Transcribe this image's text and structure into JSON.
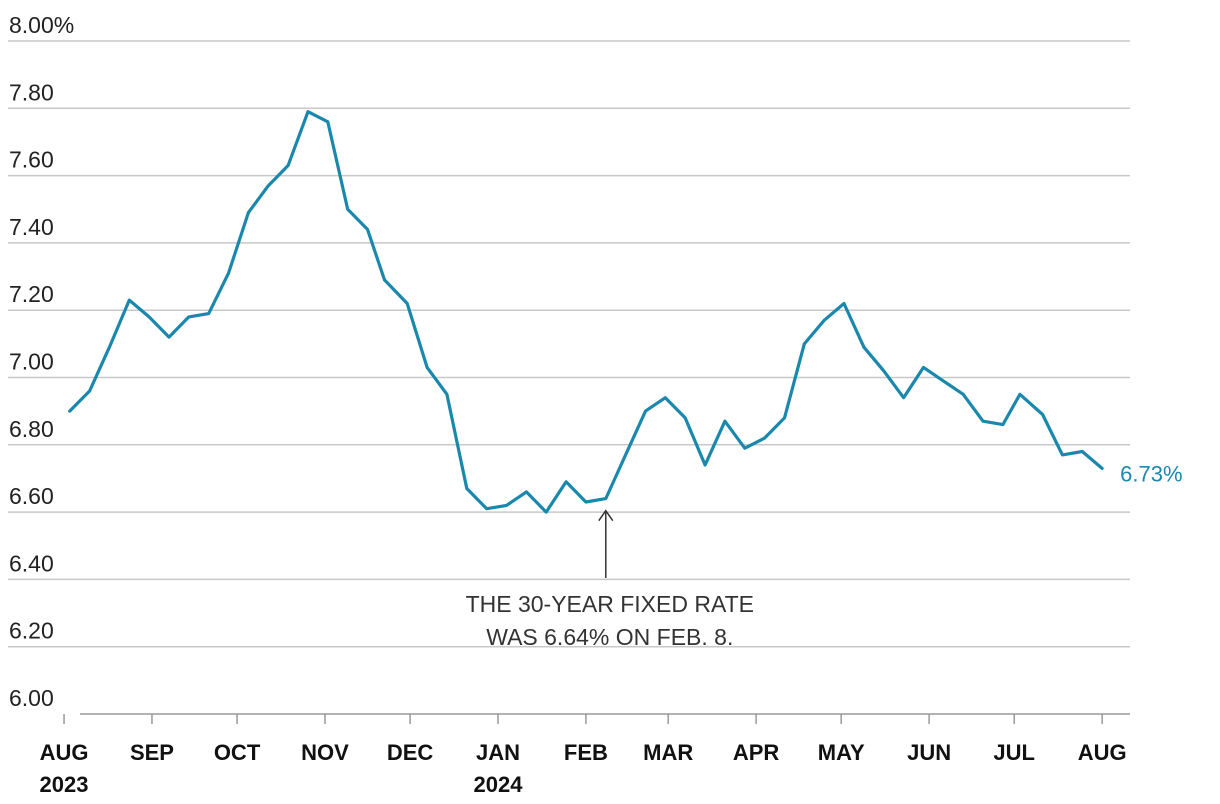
{
  "chart_data": {
    "type": "line",
    "title": "",
    "xlabel": "",
    "ylabel": "",
    "ylim": [
      6.0,
      8.0
    ],
    "y_ticks": [
      {
        "value": 8.0,
        "label": "8.00%"
      },
      {
        "value": 7.8,
        "label": "7.80"
      },
      {
        "value": 7.6,
        "label": "7.60"
      },
      {
        "value": 7.4,
        "label": "7.40"
      },
      {
        "value": 7.2,
        "label": "7.20"
      },
      {
        "value": 7.0,
        "label": "7.00"
      },
      {
        "value": 6.8,
        "label": "6.80"
      },
      {
        "value": 6.6,
        "label": "6.60"
      },
      {
        "value": 6.4,
        "label": "6.40"
      },
      {
        "value": 6.2,
        "label": "6.20"
      },
      {
        "value": 6.0,
        "label": "6.00"
      }
    ],
    "x_ticks": [
      {
        "date": "2023-08-01",
        "label": "AUG",
        "year": "2023"
      },
      {
        "date": "2023-09-01",
        "label": "SEP",
        "year": ""
      },
      {
        "date": "2023-10-01",
        "label": "OCT",
        "year": ""
      },
      {
        "date": "2023-11-01",
        "label": "NOV",
        "year": ""
      },
      {
        "date": "2023-12-01",
        "label": "DEC",
        "year": ""
      },
      {
        "date": "2024-01-01",
        "label": "JAN",
        "year": "2024"
      },
      {
        "date": "2024-02-01",
        "label": "FEB",
        "year": ""
      },
      {
        "date": "2024-03-01",
        "label": "MAR",
        "year": ""
      },
      {
        "date": "2024-04-01",
        "label": "APR",
        "year": ""
      },
      {
        "date": "2024-05-01",
        "label": "MAY",
        "year": ""
      },
      {
        "date": "2024-06-01",
        "label": "JUN",
        "year": ""
      },
      {
        "date": "2024-07-01",
        "label": "JUL",
        "year": ""
      },
      {
        "date": "2024-08-01",
        "label": "AUG",
        "year": ""
      }
    ],
    "x_range": [
      "2023-07-20",
      "2024-08-08"
    ],
    "series": [
      {
        "color": "#1a88ad",
        "x": [
          "2023-08-03",
          "2023-08-10",
          "2023-08-17",
          "2023-08-24",
          "2023-08-31",
          "2023-09-07",
          "2023-09-14",
          "2023-09-21",
          "2023-09-28",
          "2023-10-05",
          "2023-10-12",
          "2023-10-19",
          "2023-10-26",
          "2023-11-02",
          "2023-11-09",
          "2023-11-16",
          "2023-11-22",
          "2023-11-30",
          "2023-12-07",
          "2023-12-14",
          "2023-12-21",
          "2023-12-28",
          "2024-01-04",
          "2024-01-11",
          "2024-01-18",
          "2024-01-25",
          "2024-02-01",
          "2024-02-08",
          "2024-02-15",
          "2024-02-22",
          "2024-02-29",
          "2024-03-07",
          "2024-03-14",
          "2024-03-21",
          "2024-03-28",
          "2024-04-04",
          "2024-04-11",
          "2024-04-18",
          "2024-04-25",
          "2024-05-02",
          "2024-05-09",
          "2024-05-16",
          "2024-05-23",
          "2024-05-30",
          "2024-06-06",
          "2024-06-13",
          "2024-06-20",
          "2024-06-27",
          "2024-07-03",
          "2024-07-11",
          "2024-07-18",
          "2024-07-25",
          "2024-08-01"
        ],
        "values": [
          6.9,
          6.96,
          7.09,
          7.23,
          7.18,
          7.12,
          7.18,
          7.19,
          7.31,
          7.49,
          7.57,
          7.63,
          7.79,
          7.76,
          7.5,
          7.44,
          7.29,
          7.22,
          7.03,
          6.95,
          6.67,
          6.61,
          6.62,
          6.66,
          6.6,
          6.69,
          6.63,
          6.64,
          6.77,
          6.9,
          6.94,
          6.88,
          6.74,
          6.87,
          6.79,
          6.82,
          6.88,
          7.1,
          7.17,
          7.22,
          7.09,
          7.02,
          6.94,
          7.03,
          6.99,
          6.95,
          6.87,
          6.86,
          6.95,
          6.89,
          6.77,
          6.78,
          6.73
        ]
      }
    ],
    "end_label": {
      "text": "6.73%",
      "value": 6.73,
      "date": "2024-08-01"
    },
    "annotation": {
      "lines": [
        "THE 30-YEAR FIXED RATE",
        "WAS 6.64% ON FEB. 8."
      ],
      "date": "2024-02-08",
      "value": 6.64
    },
    "grid": true,
    "legend": "none"
  }
}
